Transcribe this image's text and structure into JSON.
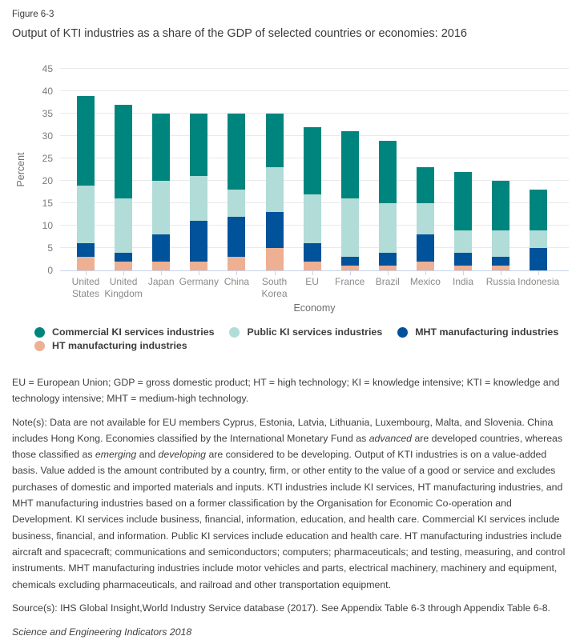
{
  "figure": {
    "label": "Figure 6-3",
    "title": "Output of KTI industries as a share of the GDP of selected countries or economies: 2016"
  },
  "chart_data": {
    "type": "bar",
    "stacked": true,
    "title": "Output of KTI industries as a share of the GDP of selected countries or economies: 2016",
    "categories": [
      "United States",
      "United Kingdom",
      "Japan",
      "Germany",
      "China",
      "South Korea",
      "EU",
      "France",
      "Brazil",
      "Mexico",
      "India",
      "Russia",
      "Indonesia"
    ],
    "series": [
      {
        "name": "HT manufacturing industries",
        "color": "#EEB092",
        "values": [
          3,
          2,
          2,
          2,
          3,
          5,
          2,
          1,
          1,
          2,
          1,
          1,
          0
        ]
      },
      {
        "name": "MHT manufacturing industries",
        "color": "#00529B",
        "values": [
          3,
          2,
          6,
          9,
          9,
          8,
          4,
          2,
          3,
          6,
          3,
          2,
          5
        ]
      },
      {
        "name": "Public KI services industries",
        "color": "#B1DCD7",
        "values": [
          13,
          12,
          12,
          10,
          6,
          10,
          11,
          13,
          11,
          7,
          5,
          6,
          4
        ]
      },
      {
        "name": "Commercial KI services industries",
        "color": "#00857E",
        "values": [
          20,
          21,
          15,
          14,
          17,
          12,
          15,
          15,
          14,
          8,
          13,
          11,
          9
        ]
      }
    ],
    "totals": [
      39,
      37,
      35,
      35,
      35,
      35,
      32,
      31,
      29,
      23,
      22,
      20,
      18
    ],
    "xlabel": "Economy",
    "ylabel": "Percent",
    "ylim": [
      0,
      45
    ],
    "yticks": [
      0,
      5,
      10,
      15,
      20,
      25,
      30,
      35,
      40,
      45
    ],
    "grid": true,
    "legend_position": "bottom"
  },
  "legend": {
    "items": [
      {
        "label": "Commercial KI services industries",
        "color": "#00857E"
      },
      {
        "label": "Public KI services industries",
        "color": "#B1DCD7"
      },
      {
        "label": "MHT manufacturing industries",
        "color": "#00529B"
      },
      {
        "label": "HT manufacturing industries",
        "color": "#EEB092"
      }
    ]
  },
  "notes": {
    "abbreviations": "EU = European Union; GDP = gross domestic product; HT = high technology; KI = knowledge intensive; KTI = knowledge and technology intensive; MHT = medium-high technology.",
    "note_segments": [
      {
        "text": "Note(s): Data are not available for EU members Cyprus, Estonia, Latvia, Lithuania, Luxembourg, Malta, and Slovenia. China includes Hong Kong. Economies classified by the International Monetary Fund as "
      },
      {
        "text": "advanced",
        "italic": true
      },
      {
        "text": " are developed countries, whereas those classified as "
      },
      {
        "text": "emerging",
        "italic": true
      },
      {
        "text": " and "
      },
      {
        "text": "developing",
        "italic": true
      },
      {
        "text": " are considered to be developing. Output of KTI industries is on a value-added basis. Value added is the amount contributed by a country, firm, or other entity to the value of a good or service and excludes purchases of domestic and imported materials and inputs. KTI industries include KI services, HT manufacturing industries, and MHT manufacturing industries based on a former classification by the Organisation for Economic Co-operation and Development. KI services include business, financial, information, education, and health care. Commercial KI services include business, financial, and information. Public KI services include education and health care. HT manufacturing industries include aircraft and spacecraft; communications and semiconductors; computers; pharmaceuticals; and testing, measuring, and control instruments. MHT manufacturing industries include motor vehicles and parts, electrical machinery, machinery and equipment, chemicals excluding pharmaceuticals, and railroad and other transportation equipment."
      }
    ],
    "source": "Source(s): IHS Global Insight,World Industry Service database (2017). See Appendix Table 6-3 through Appendix Table 6-8.",
    "attribution": "Science and Engineering Indicators 2018"
  }
}
